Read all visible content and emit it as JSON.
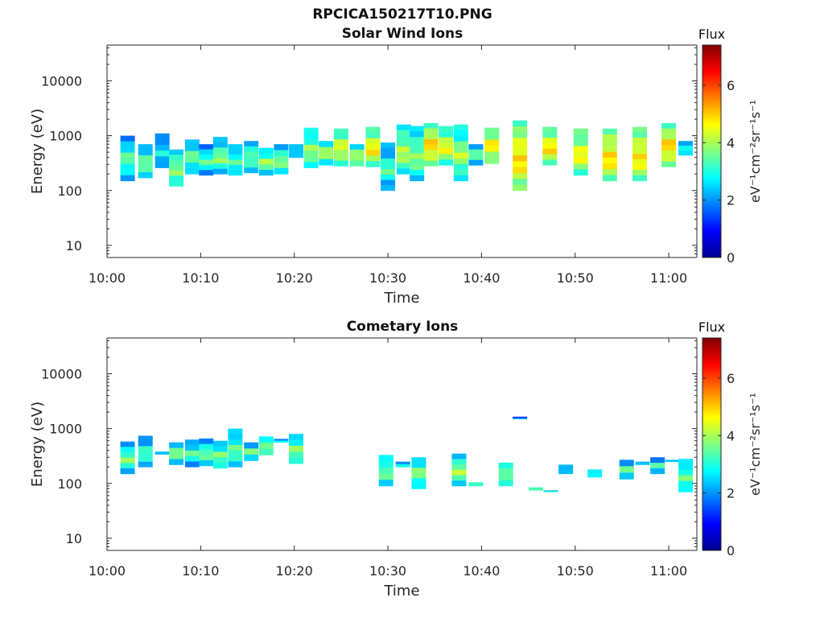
{
  "title": "RPCICA150217T10.PNG",
  "colors": {
    "axis": "#262626",
    "colormap": [
      "#00008f",
      "#0000ff",
      "#0080ff",
      "#00ffff",
      "#80ff80",
      "#ffff00",
      "#ff8000",
      "#ff0000",
      "#800000"
    ]
  },
  "chart_data": [
    {
      "type": "heatmap",
      "title": "Solar Wind Ions",
      "xlabel": "Time",
      "ylabel": "Energy (eV)",
      "xlim": [
        "10:00",
        "11:03"
      ],
      "ylim": [
        6,
        45000
      ],
      "yscale": "log",
      "xticks": [
        "10:00",
        "10:10",
        "10:20",
        "10:30",
        "10:40",
        "10:50",
        "11:00"
      ],
      "yticks": [
        "10",
        "100",
        "1000",
        "10000"
      ],
      "colorbar": {
        "label": "Flux",
        "unit": "eV⁻¹cm⁻²sr⁻¹s⁻¹",
        "ticks": [
          "0",
          "2",
          "4",
          "6"
        ],
        "range": [
          0,
          7.4
        ]
      },
      "grid": false,
      "columns": [
        {
          "t": 2.2,
          "emin": 150,
          "emax": 1000,
          "flux": 3.1
        },
        {
          "t": 4.1,
          "emin": 170,
          "emax": 700,
          "flux": 3.3
        },
        {
          "t": 5.9,
          "emin": 260,
          "emax": 1100,
          "flux": 2.6
        },
        {
          "t": 7.4,
          "emin": 120,
          "emax": 560,
          "flux": 3.6
        },
        {
          "t": 9.1,
          "emin": 200,
          "emax": 850,
          "flux": 3.2
        },
        {
          "t": 10.6,
          "emin": 190,
          "emax": 700,
          "flux": 3.0
        },
        {
          "t": 12.1,
          "emin": 200,
          "emax": 950,
          "flux": 3.4
        },
        {
          "t": 13.7,
          "emin": 190,
          "emax": 700,
          "flux": 3.1
        },
        {
          "t": 15.4,
          "emin": 210,
          "emax": 800,
          "flux": 3.3
        },
        {
          "t": 17.0,
          "emin": 190,
          "emax": 600,
          "flux": 3.5
        },
        {
          "t": 18.6,
          "emin": 200,
          "emax": 700,
          "flux": 3.4
        },
        {
          "t": 20.2,
          "emin": 400,
          "emax": 700,
          "flux": 3.0
        },
        {
          "t": 21.8,
          "emin": 260,
          "emax": 1400,
          "flux": 3.6
        },
        {
          "t": 23.4,
          "emin": 290,
          "emax": 800,
          "flux": 3.7
        },
        {
          "t": 25.0,
          "emin": 280,
          "emax": 1350,
          "flux": 4.1
        },
        {
          "t": 26.7,
          "emin": 280,
          "emax": 700,
          "flux": 3.8
        },
        {
          "t": 28.4,
          "emin": 270,
          "emax": 1450,
          "flux": 4.4
        },
        {
          "t": 30.0,
          "emin": 100,
          "emax": 750,
          "flux": 3.0
        },
        {
          "t": 31.7,
          "emin": 200,
          "emax": 1600,
          "flux": 3.8
        },
        {
          "t": 33.1,
          "emin": 150,
          "emax": 1500,
          "flux": 3.5
        },
        {
          "t": 34.6,
          "emin": 280,
          "emax": 1700,
          "flux": 4.6
        },
        {
          "t": 36.2,
          "emin": 290,
          "emax": 1500,
          "flux": 4.2
        },
        {
          "t": 37.8,
          "emin": 150,
          "emax": 1600,
          "flux": 3.7
        },
        {
          "t": 39.4,
          "emin": 290,
          "emax": 700,
          "flux": 3.2
        },
        {
          "t": 41.1,
          "emin": 310,
          "emax": 1400,
          "flux": 4.4
        },
        {
          "t": 44.1,
          "emin": 100,
          "emax": 1900,
          "flux": 4.6
        },
        {
          "t": 47.3,
          "emin": 290,
          "emax": 1450,
          "flux": 4.5
        },
        {
          "t": 50.6,
          "emin": 190,
          "emax": 1350,
          "flux": 4.3
        },
        {
          "t": 53.7,
          "emin": 150,
          "emax": 1350,
          "flux": 4.6
        },
        {
          "t": 56.9,
          "emin": 150,
          "emax": 1450,
          "flux": 4.5
        },
        {
          "t": 60.0,
          "emin": 270,
          "emax": 1700,
          "flux": 4.6
        },
        {
          "t": 61.8,
          "emin": 440,
          "emax": 800,
          "flux": 3.0
        }
      ]
    },
    {
      "type": "heatmap",
      "title": "Cometary Ions",
      "xlabel": "Time",
      "ylabel": "Energy (eV)",
      "xlim": [
        "10:00",
        "11:03"
      ],
      "ylim": [
        6,
        45000
      ],
      "yscale": "log",
      "xticks": [
        "10:00",
        "10:10",
        "10:20",
        "10:30",
        "10:40",
        "10:50",
        "11:00"
      ],
      "yticks": [
        "10",
        "100",
        "1000",
        "10000"
      ],
      "colorbar": {
        "label": "Flux",
        "unit": "eV⁻¹cm⁻²sr⁻¹s⁻¹",
        "ticks": [
          "0",
          "2",
          "4",
          "6"
        ],
        "range": [
          0,
          7.4
        ]
      },
      "grid": false,
      "columns": [
        {
          "t": 2.2,
          "emin": 150,
          "emax": 580,
          "flux": 3.3
        },
        {
          "t": 4.1,
          "emin": 200,
          "emax": 740,
          "flux": 3.0
        },
        {
          "t": 5.9,
          "emin": 340,
          "emax": 380,
          "flux": 2.6
        },
        {
          "t": 7.4,
          "emin": 220,
          "emax": 560,
          "flux": 3.4
        },
        {
          "t": 9.1,
          "emin": 200,
          "emax": 630,
          "flux": 3.0
        },
        {
          "t": 10.6,
          "emin": 210,
          "emax": 660,
          "flux": 3.2
        },
        {
          "t": 12.1,
          "emin": 190,
          "emax": 600,
          "flux": 3.4
        },
        {
          "t": 13.7,
          "emin": 200,
          "emax": 1000,
          "flux": 3.2
        },
        {
          "t": 15.4,
          "emin": 260,
          "emax": 560,
          "flux": 3.1
        },
        {
          "t": 17.0,
          "emin": 330,
          "emax": 720,
          "flux": 3.5
        },
        {
          "t": 18.6,
          "emin": 560,
          "emax": 650,
          "flux": 2.9
        },
        {
          "t": 20.2,
          "emin": 230,
          "emax": 800,
          "flux": 3.5
        },
        {
          "t": 29.8,
          "emin": 90,
          "emax": 330,
          "flux": 3.4
        },
        {
          "t": 31.6,
          "emin": 200,
          "emax": 250,
          "flux": 2.8
        },
        {
          "t": 33.3,
          "emin": 80,
          "emax": 300,
          "flux": 3.4
        },
        {
          "t": 37.6,
          "emin": 90,
          "emax": 350,
          "flux": 3.6
        },
        {
          "t": 39.4,
          "emin": 90,
          "emax": 105,
          "flux": 3.8
        },
        {
          "t": 42.6,
          "emin": 90,
          "emax": 240,
          "flux": 3.6
        },
        {
          "t": 44.1,
          "emin": 1500,
          "emax": 1650,
          "flux": 2.0
        },
        {
          "t": 45.8,
          "emin": 75,
          "emax": 85,
          "flux": 3.8
        },
        {
          "t": 47.4,
          "emin": 70,
          "emax": 75,
          "flux": 3.2
        },
        {
          "t": 49.0,
          "emin": 150,
          "emax": 220,
          "flux": 2.9
        },
        {
          "t": 52.1,
          "emin": 130,
          "emax": 180,
          "flux": 3.0
        },
        {
          "t": 55.5,
          "emin": 120,
          "emax": 270,
          "flux": 3.0
        },
        {
          "t": 57.2,
          "emin": 220,
          "emax": 250,
          "flux": 2.8
        },
        {
          "t": 58.8,
          "emin": 150,
          "emax": 300,
          "flux": 3.0
        },
        {
          "t": 60.4,
          "emin": 250,
          "emax": 270,
          "flux": 3.0
        },
        {
          "t": 61.8,
          "emin": 70,
          "emax": 280,
          "flux": 3.3
        }
      ]
    }
  ]
}
